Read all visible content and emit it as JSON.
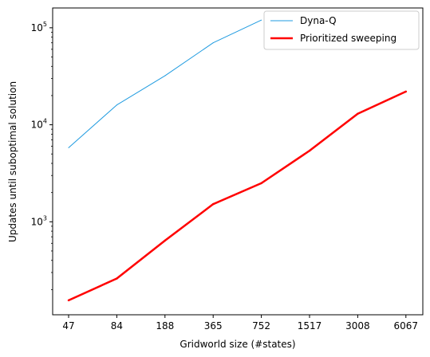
{
  "chart_data": {
    "type": "line",
    "xlabel": "Gridworld size (#states)",
    "ylabel": "Updates until suboptimal solution",
    "x_scale": "categorical",
    "y_scale": "log",
    "categories": [
      "47",
      "84",
      "188",
      "365",
      "752",
      "1517",
      "3008",
      "6067"
    ],
    "ylim": [
      110,
      160000
    ],
    "y_ticks": [
      {
        "value": 1000,
        "base": "10",
        "exp": "3"
      },
      {
        "value": 10000,
        "base": "10",
        "exp": "4"
      },
      {
        "value": 100000,
        "base": "10",
        "exp": "5"
      }
    ],
    "grid": false,
    "legend": {
      "placement": "top-right"
    },
    "series": [
      {
        "name": "Dyna-Q",
        "color": "#1f9be0",
        "width": "thin",
        "values": [
          5800,
          16000,
          32000,
          70000,
          120000,
          null,
          null,
          null
        ]
      },
      {
        "name": "Prioritized sweeping",
        "color": "#ff0000",
        "width": "thick",
        "values": [
          155,
          260,
          640,
          1520,
          2500,
          5400,
          13000,
          22000
        ]
      }
    ]
  }
}
